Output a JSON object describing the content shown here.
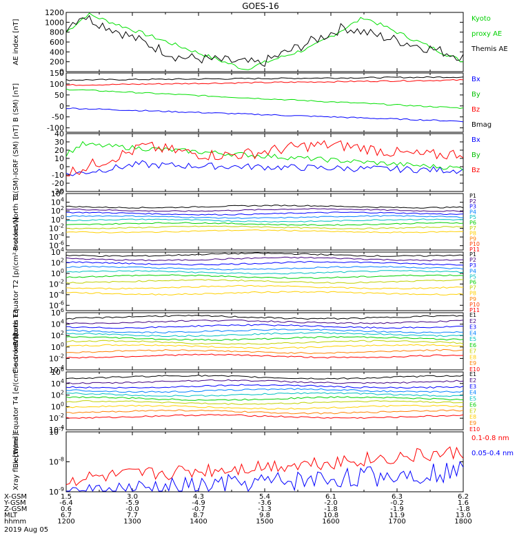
{
  "chart_data": {
    "type": "line",
    "title": "GOES-16",
    "x_range": [
      "1130",
      "1800"
    ],
    "panels": [
      {
        "ylabel": "AE index [nT]",
        "scale": "linear",
        "ylim": [
          0,
          1200
        ],
        "yticks": [
          "0",
          "200",
          "400",
          "600",
          "800",
          "1000",
          "1200"
        ],
        "series": [
          {
            "name": "Kyoto proxy AE",
            "color": "#00e000",
            "kind": "ae_kyoto"
          },
          {
            "name": "Themis AE",
            "color": "#000000",
            "kind": "ae_themis"
          }
        ],
        "legend": [
          "Kyoto",
          "proxy AE",
          "Themis AE"
        ],
        "legend_colors": [
          "#00d000",
          "#00d000",
          "#000000"
        ]
      },
      {
        "ylabel": "B (SM) [nT]",
        "scale": "linear",
        "ylim": [
          -120,
          150
        ],
        "yticks": [
          "-100",
          "-50",
          "0",
          "50",
          "100",
          "150"
        ],
        "series": [
          {
            "name": "Bmag",
            "color": "#000000",
            "kind": "line",
            "from": 118,
            "to": 132
          },
          {
            "name": "Bz",
            "color": "#ff0000",
            "kind": "line",
            "from": 95,
            "to": 118
          },
          {
            "name": "By",
            "color": "#00e000",
            "kind": "line",
            "from": 76,
            "to": -10
          },
          {
            "name": "Bx",
            "color": "#0000ff",
            "kind": "line",
            "from": -10,
            "to": -70
          }
        ],
        "legend": [
          "Bx",
          "By",
          "Bz",
          "Bmag"
        ],
        "legend_colors": [
          "#0000ff",
          "#00c000",
          "#ff0000",
          "#000000"
        ]
      },
      {
        "ylabel": "B (SM)-IGRF (SM) [nT]",
        "scale": "linear",
        "ylim": [
          -30,
          40
        ],
        "yticks": [
          "-30",
          "-20",
          "-10",
          "0",
          "10",
          "20",
          "30",
          "40"
        ],
        "series": [
          {
            "name": "Bx",
            "color": "#0000ff",
            "kind": "resid_bx"
          },
          {
            "name": "By",
            "color": "#00e000",
            "kind": "resid_by"
          },
          {
            "name": "Bz",
            "color": "#ff0000",
            "kind": "resid_bz"
          }
        ],
        "legend": [
          "Bx",
          "By",
          "Bz"
        ],
        "legend_colors": [
          "#0000ff",
          "#00c000",
          "#ff0000"
        ]
      },
      {
        "ylabel": "Protons North T1",
        "scale": "log",
        "ylim": [
          -7,
          6
        ],
        "yticks": [
          "10^6",
          "10^4",
          "10^2",
          "10^0",
          "10^-2",
          "10^-4",
          "10^-6"
        ],
        "series": [
          {
            "name": "P1",
            "color": "#000000",
            "kind": "flux",
            "level": 3.0
          },
          {
            "name": "P2",
            "color": "#400080",
            "kind": "flux",
            "level": 2.2
          },
          {
            "name": "P3",
            "color": "#0000ff",
            "kind": "flux",
            "level": 1.4
          },
          {
            "name": "P4",
            "color": "#0080ff",
            "kind": "flux",
            "level": 0.6
          },
          {
            "name": "P5",
            "color": "#00c0c0",
            "kind": "flux",
            "level": -0.2
          },
          {
            "name": "P6",
            "color": "#00d000",
            "kind": "flux",
            "level": -1.0
          },
          {
            "name": "P7",
            "color": "#c0d000",
            "kind": "flux",
            "level": -1.8
          },
          {
            "name": "P8",
            "color": "#ffd000",
            "kind": "flux",
            "level": -2.7
          }
        ],
        "legend": [
          "P1",
          "P2",
          "P3",
          "P4",
          "P5",
          "P6",
          "P7",
          "P8",
          "P9",
          "P10",
          "P11"
        ],
        "legend_colors": [
          "#000000",
          "#400080",
          "#0000ff",
          "#0080ff",
          "#00c0c0",
          "#00d000",
          "#c0d000",
          "#ffd000",
          "#ff8000",
          "#ff4000",
          "#ff0000"
        ]
      },
      {
        "ylabel": "Protons Equator T2 [p/(cm²-s-sr-keV)]",
        "scale": "log",
        "ylim": [
          -7,
          4
        ],
        "yticks": [
          "10^4",
          "10^2",
          "10^0",
          "10^-2",
          "10^-4",
          "10^-6"
        ],
        "series": [
          {
            "name": "P1",
            "color": "#000000",
            "kind": "flux",
            "level": 3.5
          },
          {
            "name": "P2",
            "color": "#400080",
            "kind": "flux",
            "level": 2.7
          },
          {
            "name": "P3",
            "color": "#0000ff",
            "kind": "flux",
            "level": 1.9
          },
          {
            "name": "P4",
            "color": "#0080ff",
            "kind": "flux",
            "level": 1.0
          },
          {
            "name": "P5",
            "color": "#00c0c0",
            "kind": "flux",
            "level": 0.2
          },
          {
            "name": "P6",
            "color": "#00d000",
            "kind": "flux",
            "level": -0.6
          },
          {
            "name": "P7",
            "color": "#c0d000",
            "kind": "flux",
            "level": -1.5
          },
          {
            "name": "P8",
            "color": "#ffd000",
            "kind": "flux",
            "level": -2.6
          },
          {
            "name": "P9",
            "color": "#ffd000",
            "kind": "flux",
            "level": -3.7
          }
        ],
        "legend": [
          "P1",
          "P2",
          "P3",
          "P4",
          "P5",
          "P6",
          "P7",
          "P8",
          "P9",
          "P10",
          "P11"
        ],
        "legend_colors": [
          "#000000",
          "#400080",
          "#0000ff",
          "#0080ff",
          "#00c0c0",
          "#00d000",
          "#c0d000",
          "#ffd000",
          "#ff8000",
          "#ff4000",
          "#ff0000"
        ]
      },
      {
        "ylabel": "Electrons North T3",
        "scale": "log",
        "ylim": [
          -4,
          6
        ],
        "yticks": [
          "10^6",
          "10^4",
          "10^2",
          "10^0",
          "10^-2",
          "10^-4"
        ],
        "series": [
          {
            "name": "E1",
            "color": "#000000",
            "kind": "flux",
            "level": 5.2
          },
          {
            "name": "E2",
            "color": "#400080",
            "kind": "flux",
            "level": 4.4
          },
          {
            "name": "E3",
            "color": "#0000ff",
            "kind": "flux",
            "level": 3.6
          },
          {
            "name": "E4",
            "color": "#0080ff",
            "kind": "flux",
            "level": 2.8
          },
          {
            "name": "E5",
            "color": "#00c0c0",
            "kind": "flux",
            "level": 2.2
          },
          {
            "name": "E6",
            "color": "#00d000",
            "kind": "flux",
            "level": 1.5
          },
          {
            "name": "E7",
            "color": "#c0d000",
            "kind": "flux",
            "level": 0.8
          },
          {
            "name": "E8",
            "color": "#ffd000",
            "kind": "flux",
            "level": 0.1
          },
          {
            "name": "E9",
            "color": "#ff8000",
            "kind": "flux",
            "level": -0.8
          },
          {
            "name": "E10",
            "color": "#ff0000",
            "kind": "flux",
            "level": -1.6
          }
        ],
        "legend": [
          "E1",
          "E2",
          "E3",
          "E4",
          "E5",
          "E6",
          "E7",
          "E8",
          "E9",
          "E10"
        ],
        "legend_colors": [
          "#000000",
          "#400080",
          "#0000ff",
          "#0080ff",
          "#00c0c0",
          "#00d000",
          "#c0d000",
          "#ffd000",
          "#ff8000",
          "#ff0000"
        ]
      },
      {
        "ylabel": "Electrons Equator T4 [e/(cm²-s-sr-keV)]",
        "scale": "log",
        "ylim": [
          -4,
          6
        ],
        "yticks": [
          "10^6",
          "10^4",
          "10^2",
          "10^0",
          "10^-2",
          "10^-4"
        ],
        "series": [
          {
            "name": "E1",
            "color": "#000000",
            "kind": "flux",
            "level": 5.1
          },
          {
            "name": "E2",
            "color": "#400080",
            "kind": "flux",
            "level": 4.3
          },
          {
            "name": "E3",
            "color": "#0000ff",
            "kind": "flux",
            "level": 3.5
          },
          {
            "name": "E4",
            "color": "#0080ff",
            "kind": "flux",
            "level": 2.8
          },
          {
            "name": "E5",
            "color": "#00c0c0",
            "kind": "flux",
            "level": 2.1
          },
          {
            "name": "E6",
            "color": "#00d000",
            "kind": "flux",
            "level": 1.4
          },
          {
            "name": "E7",
            "color": "#c0d000",
            "kind": "flux",
            "level": 0.7
          },
          {
            "name": "E8",
            "color": "#ffd000",
            "kind": "flux",
            "level": -0.1
          },
          {
            "name": "E9",
            "color": "#ff8000",
            "kind": "flux",
            "level": -0.9
          },
          {
            "name": "E10",
            "color": "#ff0000",
            "kind": "flux",
            "level": -1.7
          }
        ],
        "legend": [
          "E1",
          "E2",
          "E3",
          "E4",
          "E5",
          "E6",
          "E7",
          "E8",
          "E9",
          "E10"
        ],
        "legend_colors": [
          "#000000",
          "#400080",
          "#0000ff",
          "#0080ff",
          "#00c0c0",
          "#00d000",
          "#c0d000",
          "#ffd000",
          "#ff8000",
          "#ff0000"
        ]
      },
      {
        "ylabel": "Xray flux [W/m²]",
        "scale": "log",
        "ylim": [
          -9,
          -7
        ],
        "yticks": [
          "10^-7",
          "10^-8",
          "10^-9"
        ],
        "series": [
          {
            "name": "0.1-0.8 nm",
            "color": "#ff0000",
            "kind": "xray_long"
          },
          {
            "name": "0.05-0.4 nm",
            "color": "#0000ff",
            "kind": "xray_short"
          }
        ],
        "legend": [
          "0.1-0.8 nm",
          "0.05-0.4 nm"
        ],
        "legend_colors": [
          "#ff0000",
          "#0000ff"
        ]
      }
    ],
    "ephemeris": {
      "row_labels": [
        "X-GSM",
        "Y-GSM",
        "Z-GSM",
        "MLT",
        "hhmm"
      ],
      "columns": [
        [
          "1.5",
          "-6.4",
          "0.6",
          "6.7",
          "1200"
        ],
        [
          "3.0",
          "-5.9",
          "-0.0",
          "7.7",
          "1300"
        ],
        [
          "4.3",
          "-4.9",
          "-0.7",
          "8.7",
          "1400"
        ],
        [
          "5.4",
          "-3.6",
          "-1.3",
          "9.8",
          "1500"
        ],
        [
          "6.1",
          "-2.0",
          "-1.8",
          "10.8",
          "1600"
        ],
        [
          "6.3",
          "-0.2",
          "-1.9",
          "11.9",
          "1700"
        ],
        [
          "6.2",
          "1.6",
          "-1.8",
          "13.0",
          "1800"
        ]
      ],
      "date": "2019 Aug 05"
    }
  }
}
